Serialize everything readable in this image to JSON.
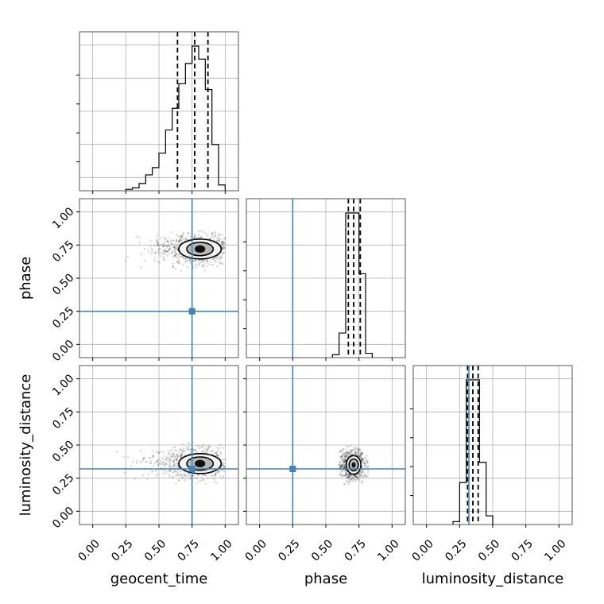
{
  "chart_data": {
    "type": "corner",
    "parameters": [
      "geocent_time",
      "phase",
      "luminosity_distance"
    ],
    "truths": [
      0.75,
      0.25,
      0.32
    ],
    "truth_color": "#4682b4",
    "tick_values": [
      0.0,
      0.25,
      0.5,
      0.75,
      1.0
    ],
    "tick_labels": [
      "0.00",
      "0.25",
      "0.50",
      "0.75",
      "1.00"
    ],
    "axis_range": [
      -0.1,
      1.1
    ],
    "histograms": [
      {
        "parameter": "geocent_time",
        "bin_edges": [
          0.25,
          0.3,
          0.35,
          0.4,
          0.45,
          0.5,
          0.55,
          0.6,
          0.65,
          0.7,
          0.75,
          0.8,
          0.85,
          0.9,
          0.95,
          1.0
        ],
        "counts": [
          1,
          2,
          5,
          11,
          16,
          26,
          42,
          57,
          74,
          88,
          100,
          91,
          70,
          32,
          4
        ],
        "quantiles": [
          0.64,
          0.77,
          0.87
        ]
      },
      {
        "parameter": "phase",
        "bin_edges": [
          0.55,
          0.6,
          0.65,
          0.7,
          0.75,
          0.8,
          0.85
        ],
        "counts": [
          2,
          17,
          100,
          100,
          58,
          3
        ],
        "quantiles": [
          0.67,
          0.71,
          0.76
        ]
      },
      {
        "parameter": "luminosity_distance",
        "bin_edges": [
          0.2,
          0.25,
          0.3,
          0.35,
          0.4,
          0.45,
          0.5
        ],
        "counts": [
          2,
          29,
          100,
          100,
          43,
          6
        ],
        "quantiles": [
          0.31,
          0.35,
          0.39
        ]
      }
    ],
    "contour_panels": [
      {
        "x": "geocent_time",
        "y": "phase",
        "center": [
          0.81,
          0.72
        ],
        "levels": [
          {
            "rx": 0.16,
            "ry": 0.075,
            "kind": "outer"
          },
          {
            "rx": 0.1,
            "ry": 0.05,
            "kind": "inner"
          },
          {
            "rx": 0.04,
            "ry": 0.028,
            "kind": "core"
          }
        ],
        "scatter_extent": {
          "x": [
            0.18,
            1.0
          ],
          "y": [
            0.55,
            0.86
          ]
        }
      },
      {
        "x": "geocent_time",
        "y": "luminosity_distance",
        "center": [
          0.81,
          0.36
        ],
        "levels": [
          {
            "rx": 0.16,
            "ry": 0.075,
            "kind": "outer"
          },
          {
            "rx": 0.1,
            "ry": 0.05,
            "kind": "inner"
          },
          {
            "rx": 0.04,
            "ry": 0.028,
            "kind": "core"
          }
        ],
        "scatter_extent": {
          "x": [
            0.18,
            1.0
          ],
          "y": [
            0.2,
            0.52
          ]
        }
      },
      {
        "x": "phase",
        "y": "luminosity_distance",
        "center": [
          0.71,
          0.35
        ],
        "levels": [
          {
            "rx": 0.055,
            "ry": 0.07,
            "kind": "outer"
          },
          {
            "rx": 0.035,
            "ry": 0.045,
            "kind": "inner"
          },
          {
            "rx": 0.015,
            "ry": 0.02,
            "kind": "core"
          }
        ],
        "scatter_extent": {
          "x": [
            0.6,
            0.82
          ],
          "y": [
            0.2,
            0.52
          ]
        }
      }
    ],
    "grid": true
  }
}
